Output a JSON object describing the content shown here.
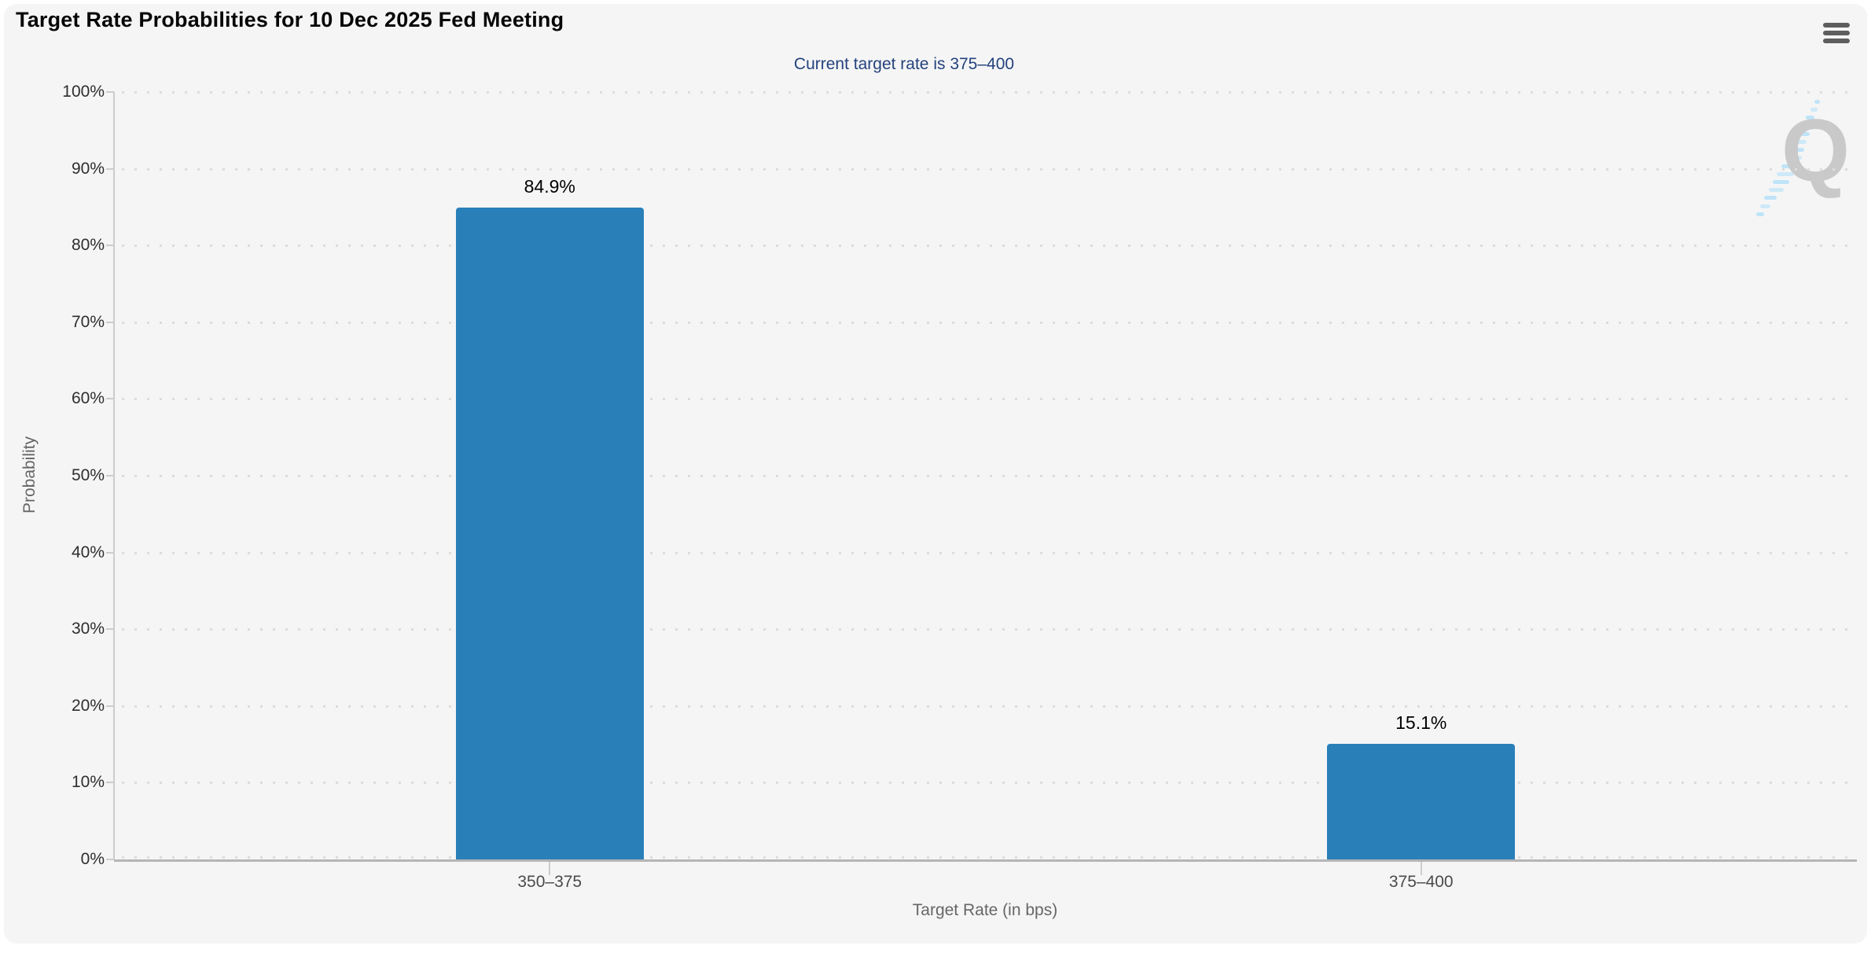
{
  "chart": {
    "title": "Target Rate Probabilities for 10 Dec 2025 Fed Meeting",
    "subtitle": "Current target rate is 375–400",
    "y_axis_title": "Probability",
    "x_axis_title": "Target Rate (in bps)",
    "watermark_letter": "Q",
    "menu_icon": "hamburger-menu-icon",
    "watermark_icon": "quikstrike-q-logo"
  },
  "colors": {
    "page_background": "#ffffff",
    "panel_background": "#f5f5f6",
    "bar_fill": "#2980b9",
    "title_text": "#050505",
    "subtitle_text": "#24427c",
    "axis_tick_label": "#2e2e2e",
    "category_label": "#4a4a4a",
    "axis_title_text": "#666666",
    "grid_dot": "#dcdcdc",
    "axis_line": "#cccccc",
    "baseline": "#b5b5b5",
    "menu_icon": "#5e5e5e",
    "watermark_gray": "#c9c9ca",
    "watermark_blue": "#b9e2f8"
  },
  "chart_data": {
    "type": "bar",
    "title": "Target Rate Probabilities for 10 Dec 2025 Fed Meeting",
    "subtitle": "Current target rate is 375–400",
    "categories": [
      "350–375",
      "375–400"
    ],
    "values": [
      84.9,
      15.1
    ],
    "value_labels": [
      "84.9%",
      "15.1%"
    ],
    "xlabel": "Target Rate (in bps)",
    "ylabel": "Probability",
    "ylim": [
      0,
      100
    ],
    "ytick_step": 10,
    "ytick_labels": [
      "0%",
      "10%",
      "20%",
      "30%",
      "40%",
      "50%",
      "60%",
      "70%",
      "80%",
      "90%",
      "100%"
    ],
    "grid": "dotted-horizontal",
    "legend": "none",
    "bar_color": "#2980b9"
  }
}
